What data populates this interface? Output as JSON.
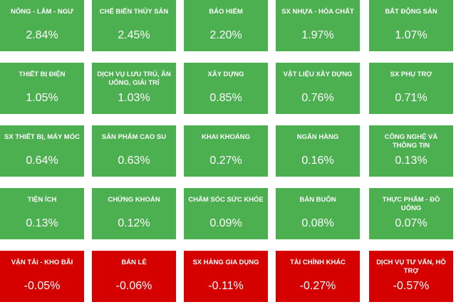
{
  "tiles": [
    {
      "name": "NÔNG - LÂM - NGƯ",
      "change": "2.84%",
      "color": "#4caf50"
    },
    {
      "name": "CHẾ BIẾN THỦY SẢN",
      "change": "2.45%",
      "color": "#4caf50"
    },
    {
      "name": "BẢO HIỂM",
      "change": "2.20%",
      "color": "#4caf50"
    },
    {
      "name": "SX NHỰA - HÓA CHẤT",
      "change": "1.97%",
      "color": "#4caf50"
    },
    {
      "name": "BẤT ĐỘNG SẢN",
      "change": "1.07%",
      "color": "#4caf50"
    },
    {
      "name": "THIẾT BỊ ĐIỆN",
      "change": "1.05%",
      "color": "#4caf50"
    },
    {
      "name": "DỊCH VỤ LƯU TRÚ, ĂN UỐNG, GIẢI TRÍ",
      "change": "1.03%",
      "color": "#4caf50"
    },
    {
      "name": "XÂY DỰNG",
      "change": "0.85%",
      "color": "#4caf50"
    },
    {
      "name": "VẬT LIỆU XÂY DỰNG",
      "change": "0.76%",
      "color": "#4caf50"
    },
    {
      "name": "SX PHỤ TRỢ",
      "change": "0.71%",
      "color": "#4caf50"
    },
    {
      "name": "SX THIẾT BỊ, MÁY MÓC",
      "change": "0.64%",
      "color": "#4caf50"
    },
    {
      "name": "SẢN PHẨM CAO SU",
      "change": "0.63%",
      "color": "#4caf50"
    },
    {
      "name": "KHAI KHOÁNG",
      "change": "0.27%",
      "color": "#4caf50"
    },
    {
      "name": "NGÂN HÀNG",
      "change": "0.16%",
      "color": "#4caf50"
    },
    {
      "name": "CÔNG NGHỆ VÀ THÔNG TIN",
      "change": "0.13%",
      "color": "#4caf50"
    },
    {
      "name": "TIỆN ÍCH",
      "change": "0.13%",
      "color": "#4caf50"
    },
    {
      "name": "CHỨNG KHOÁN",
      "change": "0.12%",
      "color": "#4caf50"
    },
    {
      "name": "CHĂM SÓC SỨC KHỎE",
      "change": "0.09%",
      "color": "#4caf50"
    },
    {
      "name": "BÁN BUÔN",
      "change": "0.08%",
      "color": "#4caf50"
    },
    {
      "name": "THỰC PHẨM - ĐỒ UỐNG",
      "change": "0.07%",
      "color": "#4caf50"
    },
    {
      "name": "VẬN TẢI - KHO BÃI",
      "change": "-0.05%",
      "color": "#d50000"
    },
    {
      "name": "BÁN LẺ",
      "change": "-0.06%",
      "color": "#d50000"
    },
    {
      "name": "SX HÀNG GIA DỤNG",
      "change": "-0.11%",
      "color": "#d50000"
    },
    {
      "name": "TÀI CHÍNH KHÁC",
      "change": "-0.27%",
      "color": "#d50000"
    },
    {
      "name": "DỊCH VỤ TƯ VẤN, HỖ TRỢ",
      "change": "-0.57%",
      "color": "#d50000"
    }
  ]
}
